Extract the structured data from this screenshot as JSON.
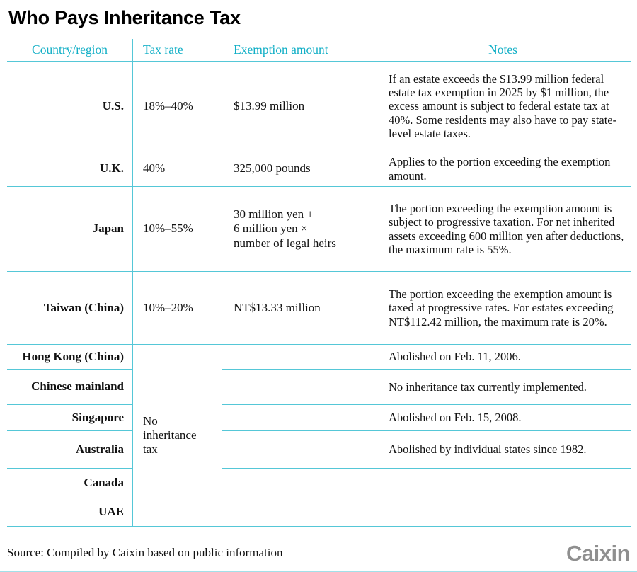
{
  "title": "Who Pays Inheritance Tax",
  "colors": {
    "accent": "#12afc6",
    "line": "#55c7d7",
    "text": "#111111",
    "logo": "#8f8f8f"
  },
  "chart_data": {
    "type": "table",
    "title": "Who Pays Inheritance Tax",
    "columns": [
      "Country/region",
      "Tax rate",
      "Exemption amount",
      "Notes"
    ],
    "merged_tax_rate_label": "No\ninheritance\ntax",
    "merged_tax_rate_rows": [
      "Hong Kong (China)",
      "Chinese mainland",
      "Singapore",
      "Australia",
      "Canada",
      "UAE"
    ],
    "rows": [
      {
        "country": "U.S.",
        "tax_rate": "18%–40%",
        "exemption": "$13.99 million",
        "notes": "If an estate exceeds the $13.99 million federal estate tax exemption in 2025 by $1 million, the excess amount is subject to federal estate tax at 40%. Some residents may also have to pay state-level estate taxes."
      },
      {
        "country": "U.K.",
        "tax_rate": "40%",
        "exemption": "325,000 pounds",
        "notes": "Applies to the portion exceeding the exemption amount."
      },
      {
        "country": "Japan",
        "tax_rate": "10%–55%",
        "exemption": "30 million yen +\n6 million yen ×\nnumber of legal heirs",
        "notes": "The portion exceeding the exemption amount is subject to progressive taxation. For net inherited assets exceeding 600 million yen after deductions, the maximum rate is 55%."
      },
      {
        "country": "Taiwan (China)",
        "tax_rate": "10%–20%",
        "exemption": "NT$13.33 million",
        "notes": "The portion exceeding the exemption amount is taxed at progressive rates. For estates exceeding NT$112.42 million, the maximum rate is 20%."
      },
      {
        "country": "Hong Kong (China)",
        "tax_rate": "",
        "exemption": "",
        "notes": "Abolished on Feb. 11, 2006."
      },
      {
        "country": "Chinese mainland",
        "tax_rate": "",
        "exemption": "",
        "notes": "No inheritance tax currently implemented."
      },
      {
        "country": "Singapore",
        "tax_rate": "",
        "exemption": "",
        "notes": "Abolished on Feb. 15, 2008."
      },
      {
        "country": "Australia",
        "tax_rate": "",
        "exemption": "",
        "notes": "Abolished by individual states since 1982."
      },
      {
        "country": "Canada",
        "tax_rate": "",
        "exemption": "",
        "notes": ""
      },
      {
        "country": "UAE",
        "tax_rate": "",
        "exemption": "",
        "notes": ""
      }
    ]
  },
  "source": "Source: Compiled by Caixin based on public information",
  "logo_text": "Caixin"
}
